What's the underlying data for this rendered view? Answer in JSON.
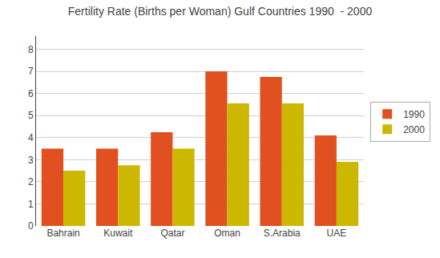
{
  "chart_data": {
    "type": "bar",
    "title": "Fertility Rate (Births per Woman) Gulf Countries 1990  - 2000",
    "categories": [
      "Bahrain",
      "Kuwait",
      "Qatar",
      "Oman",
      "S.Arabia",
      "UAE"
    ],
    "series": [
      {
        "name": "1990",
        "color": "#E05020",
        "values": [
          3.5,
          3.5,
          4.25,
          7.0,
          6.75,
          4.1
        ]
      },
      {
        "name": "2000",
        "color": "#CCB800",
        "values": [
          2.5,
          2.75,
          3.5,
          5.55,
          5.55,
          2.9
        ]
      }
    ],
    "ylim": [
      0,
      8.6
    ],
    "yticks": [
      0,
      1,
      2,
      3,
      4,
      5,
      6,
      7,
      8
    ],
    "grid": true,
    "legend": "right"
  }
}
